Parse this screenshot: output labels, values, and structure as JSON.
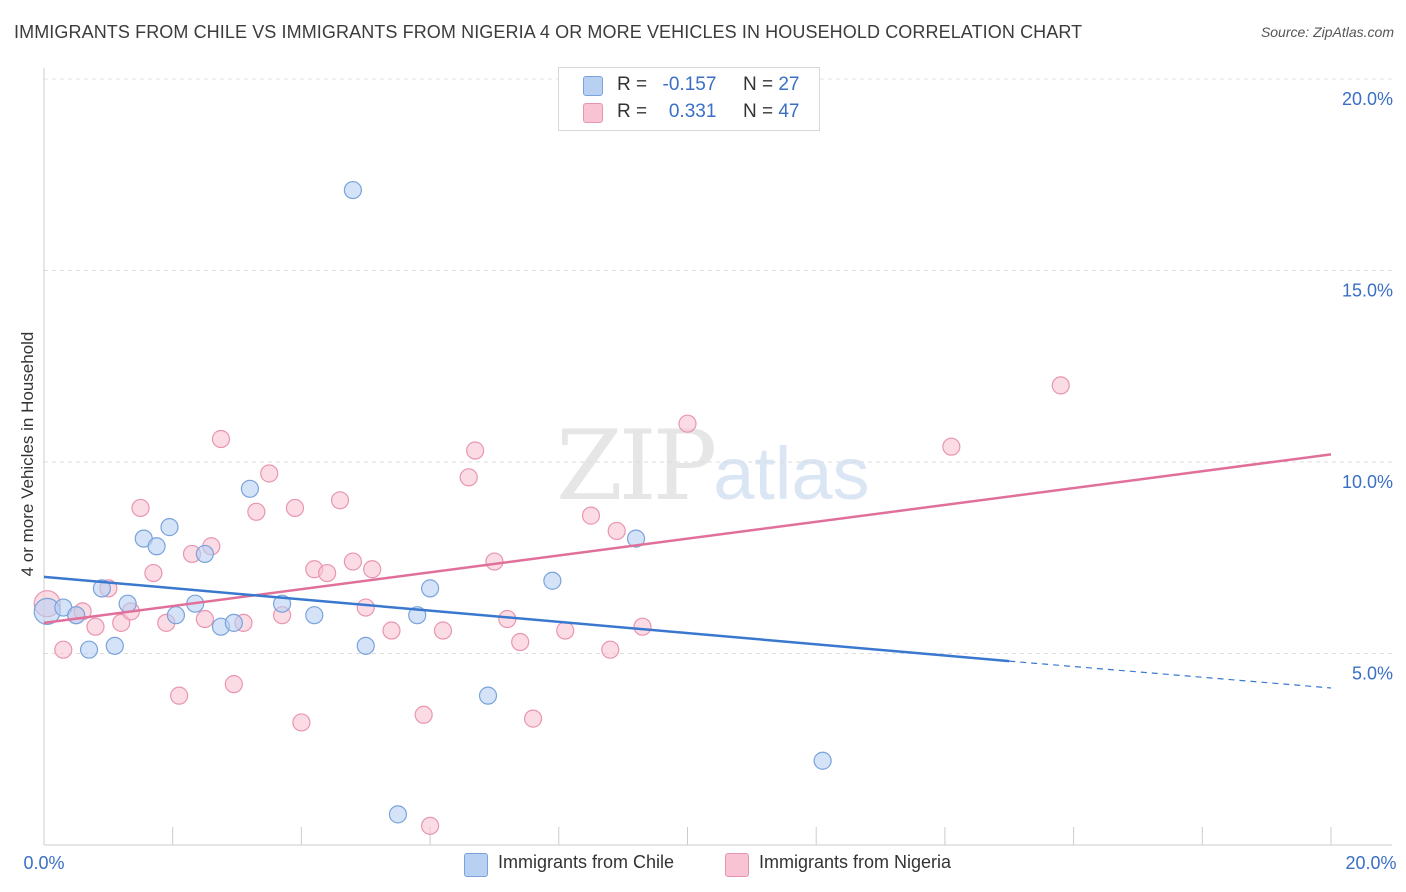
{
  "title": "IMMIGRANTS FROM CHILE VS IMMIGRANTS FROM NIGERIA 4 OR MORE VEHICLES IN HOUSEHOLD CORRELATION CHART",
  "source": "Source: ZipAtlas.com",
  "watermark": {
    "zip": "ZIP",
    "atlas": "atlas"
  },
  "legend": {
    "r_label": "R =",
    "n_label": "N =",
    "chile": {
      "r": "-0.157",
      "n": "27"
    },
    "nigeria": {
      "r": "0.331",
      "n": "47"
    }
  },
  "colors": {
    "chile_fill": "#b8d0f2",
    "chile_stroke": "#7aa3dc",
    "chile_line": "#3a78cf",
    "nigeria_fill": "#f8c4d4",
    "nigeria_stroke": "#e995b0",
    "nigeria_line": "#e0709a",
    "axis_text": "#3a6fc4"
  },
  "chart_data": {
    "type": "scatter",
    "xlabel": "",
    "ylabel": "4 or more Vehicles in Household",
    "xlim": [
      0,
      20
    ],
    "ylim": [
      0,
      20
    ],
    "x_tick_labels": [
      "0.0%",
      "20.0%"
    ],
    "y_ticks": [
      5,
      10,
      15,
      20
    ],
    "y_tick_labels": [
      "5.0%",
      "10.0%",
      "15.0%",
      "20.0%"
    ],
    "grid": "horizontal dashed",
    "legend_position": "top-center",
    "series": [
      {
        "name": "Immigrants from Chile",
        "points": [
          [
            0.05,
            6.1
          ],
          [
            0.3,
            6.2
          ],
          [
            0.5,
            6.0
          ],
          [
            0.7,
            5.1
          ],
          [
            0.9,
            6.7
          ],
          [
            1.1,
            5.2
          ],
          [
            1.3,
            6.3
          ],
          [
            1.55,
            8.0
          ],
          [
            1.75,
            7.8
          ],
          [
            1.95,
            8.3
          ],
          [
            2.05,
            6.0
          ],
          [
            2.35,
            6.3
          ],
          [
            2.5,
            7.6
          ],
          [
            2.75,
            5.7
          ],
          [
            2.95,
            5.8
          ],
          [
            3.2,
            9.3
          ],
          [
            3.7,
            6.3
          ],
          [
            4.2,
            6.0
          ],
          [
            4.8,
            17.1
          ],
          [
            5.0,
            5.2
          ],
          [
            5.5,
            0.8
          ],
          [
            5.8,
            6.0
          ],
          [
            6.0,
            6.7
          ],
          [
            6.9,
            3.9
          ],
          [
            7.9,
            6.9
          ],
          [
            9.2,
            8.0
          ],
          [
            12.1,
            2.2
          ]
        ],
        "trend": {
          "x": [
            0,
            15.0
          ],
          "y": [
            7.0,
            4.8
          ]
        },
        "trend_extension": {
          "x": [
            15.0,
            20.0
          ],
          "y": [
            4.8,
            4.1
          ]
        }
      },
      {
        "name": "Immigrants from Nigeria",
        "points": [
          [
            0.05,
            6.3
          ],
          [
            0.3,
            5.1
          ],
          [
            0.5,
            6.0
          ],
          [
            0.6,
            6.1
          ],
          [
            0.8,
            5.7
          ],
          [
            1.0,
            6.7
          ],
          [
            1.2,
            5.8
          ],
          [
            1.35,
            6.1
          ],
          [
            1.5,
            8.8
          ],
          [
            1.7,
            7.1
          ],
          [
            1.9,
            5.8
          ],
          [
            2.1,
            3.9
          ],
          [
            2.3,
            7.6
          ],
          [
            2.5,
            5.9
          ],
          [
            2.6,
            7.8
          ],
          [
            2.75,
            10.6
          ],
          [
            2.95,
            4.2
          ],
          [
            3.1,
            5.8
          ],
          [
            3.3,
            8.7
          ],
          [
            3.5,
            9.7
          ],
          [
            3.7,
            6.0
          ],
          [
            3.9,
            8.8
          ],
          [
            4.0,
            3.2
          ],
          [
            4.2,
            7.2
          ],
          [
            4.4,
            7.1
          ],
          [
            4.6,
            9.0
          ],
          [
            4.8,
            7.4
          ],
          [
            5.0,
            6.2
          ],
          [
            5.1,
            7.2
          ],
          [
            5.4,
            5.6
          ],
          [
            5.9,
            3.4
          ],
          [
            6.0,
            0.5
          ],
          [
            6.2,
            5.6
          ],
          [
            6.6,
            9.6
          ],
          [
            6.7,
            10.3
          ],
          [
            7.0,
            7.4
          ],
          [
            7.2,
            5.9
          ],
          [
            7.4,
            5.3
          ],
          [
            7.6,
            3.3
          ],
          [
            8.1,
            5.6
          ],
          [
            8.5,
            8.6
          ],
          [
            8.8,
            5.1
          ],
          [
            8.9,
            8.2
          ],
          [
            9.3,
            5.7
          ],
          [
            10.0,
            11.0
          ],
          [
            14.1,
            10.4
          ],
          [
            15.8,
            12.0
          ]
        ],
        "trend": {
          "x": [
            0,
            20.0
          ],
          "y": [
            5.8,
            10.2
          ]
        }
      }
    ]
  }
}
